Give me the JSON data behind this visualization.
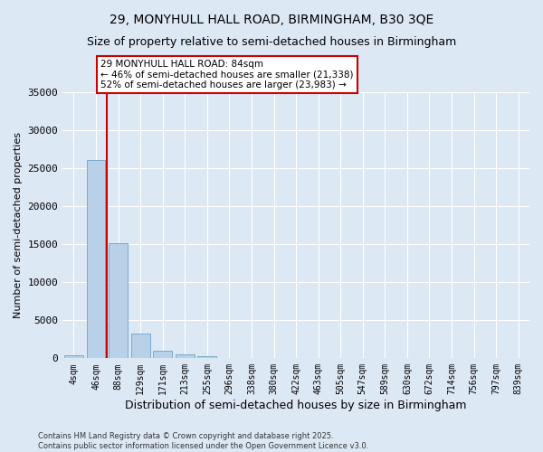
{
  "title_line1": "29, MONYHULL HALL ROAD, BIRMINGHAM, B30 3QE",
  "title_line2": "Size of property relative to semi-detached houses in Birmingham",
  "xlabel": "Distribution of semi-detached houses by size in Birmingham",
  "ylabel": "Number of semi-detached properties",
  "categories": [
    "4sqm",
    "46sqm",
    "88sqm",
    "129sqm",
    "171sqm",
    "213sqm",
    "255sqm",
    "296sqm",
    "338sqm",
    "380sqm",
    "422sqm",
    "463sqm",
    "505sqm",
    "547sqm",
    "589sqm",
    "630sqm",
    "672sqm",
    "714sqm",
    "756sqm",
    "797sqm",
    "839sqm"
  ],
  "values": [
    350,
    26100,
    15200,
    3300,
    1050,
    500,
    250,
    80,
    0,
    0,
    0,
    0,
    0,
    0,
    0,
    0,
    0,
    0,
    0,
    0,
    0
  ],
  "bar_color": "#b8d0e8",
  "bar_edge_color": "#7aaaca",
  "property_line_x": 1.5,
  "annotation_text_line1": "29 MONYHULL HALL ROAD: 84sqm",
  "annotation_text_line2": "← 46% of semi-detached houses are smaller (21,338)",
  "annotation_text_line3": "52% of semi-detached houses are larger (23,983) →",
  "vline_color": "#cc0000",
  "annotation_box_edge_color": "#cc0000",
  "annotation_box_face_color": "#ffffff",
  "ylim": [
    0,
    35000
  ],
  "yticks": [
    0,
    5000,
    10000,
    15000,
    20000,
    25000,
    30000,
    35000
  ],
  "background_color": "#dde8f5",
  "grid_color": "#ffffff",
  "footer_line1": "Contains HM Land Registry data © Crown copyright and database right 2025.",
  "footer_line2": "Contains public sector information licensed under the Open Government Licence v3.0."
}
